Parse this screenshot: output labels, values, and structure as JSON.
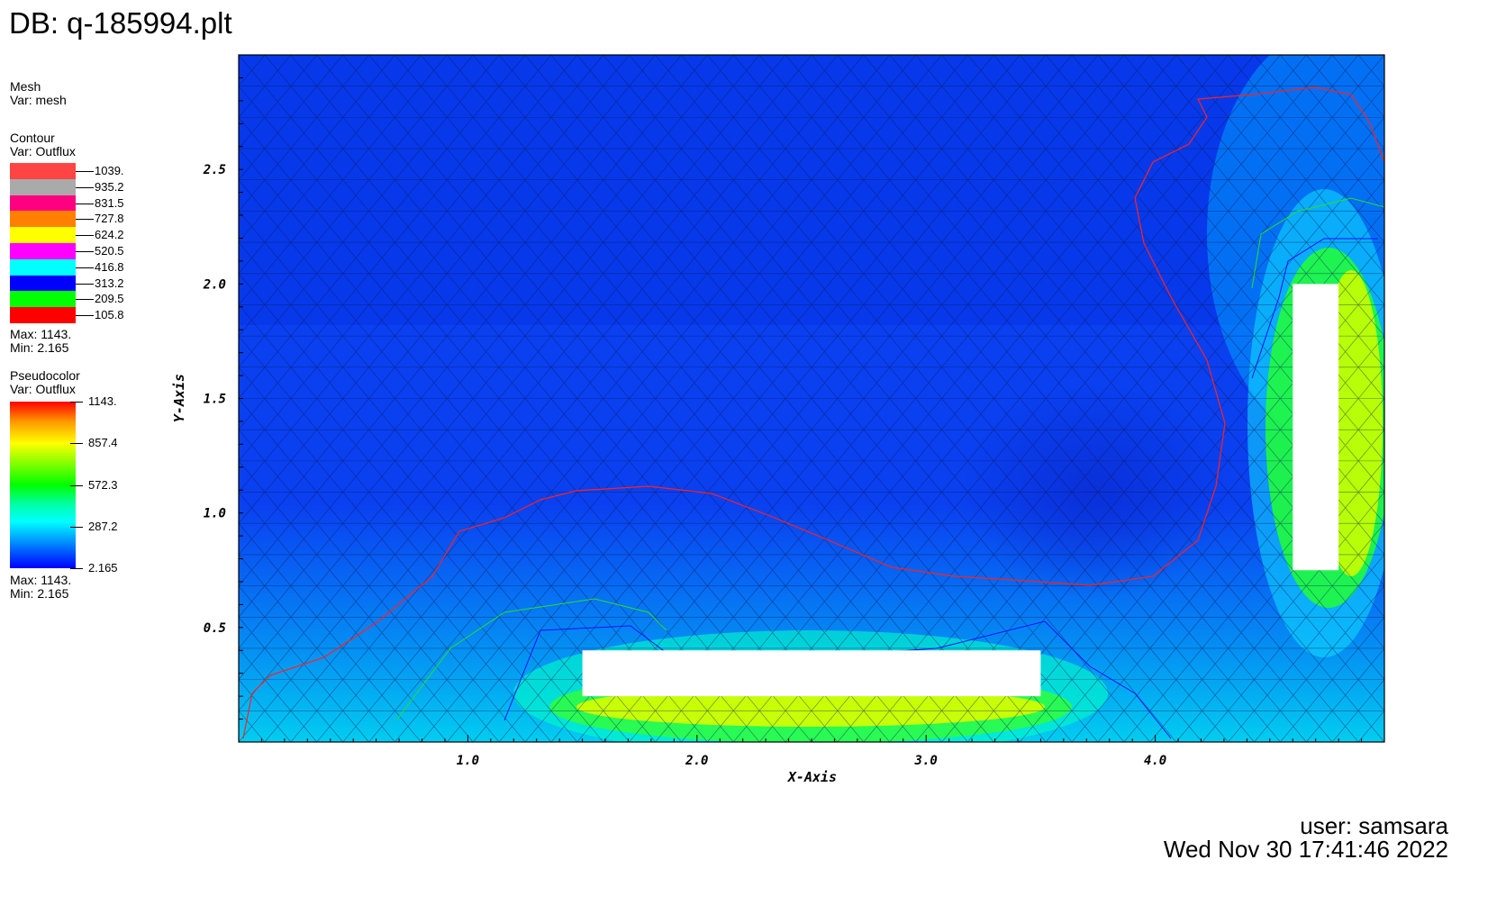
{
  "db_title": "DB: q-185994.plt",
  "legends": {
    "mesh": {
      "title": "Mesh",
      "var": "Var: mesh"
    },
    "contour": {
      "title": "Contour",
      "var": "Var: Outflux",
      "levels": [
        {
          "value": "1039.",
          "color": "#ff4444"
        },
        {
          "value": "935.2",
          "color": "#aaaaaa"
        },
        {
          "value": "831.5",
          "color": "#ff0080"
        },
        {
          "value": "727.8",
          "color": "#ff8000"
        },
        {
          "value": "624.2",
          "color": "#ffff00"
        },
        {
          "value": "520.5",
          "color": "#ff00ff"
        },
        {
          "value": "416.8",
          "color": "#00ffff"
        },
        {
          "value": "313.2",
          "color": "#0000ff"
        },
        {
          "value": "209.5",
          "color": "#00ff00"
        },
        {
          "value": "105.8",
          "color": "#ff0000"
        }
      ],
      "max": "Max: 1143.",
      "min": "Min: 2.165"
    },
    "pseudocolor": {
      "title": "Pseudocolor",
      "var": "Var: Outflux",
      "ticks": [
        "1143.",
        "857.4",
        "572.3",
        "287.2",
        "2.165"
      ],
      "max": "Max: 1143.",
      "min": "Min: 2.165"
    }
  },
  "footer": {
    "user": "user: samsara",
    "date": "Wed Nov 30 17:41:46 2022"
  },
  "chart_data": {
    "type": "heatmap",
    "xlabel": "X-Axis",
    "ylabel": "Y-Axis",
    "xlim": [
      0.0,
      5.0
    ],
    "ylim": [
      0.0,
      3.0
    ],
    "x_ticks": [
      "1.0",
      "2.0",
      "3.0",
      "4.0"
    ],
    "y_ticks": [
      "0.5",
      "1.0",
      "1.5",
      "2.0",
      "2.5"
    ],
    "x_tick_values": [
      1.0,
      2.0,
      3.0,
      4.0
    ],
    "y_tick_values": [
      0.5,
      1.0,
      1.5,
      2.0,
      2.5
    ],
    "colormap": "hot_desaturated",
    "value_range": [
      2.165,
      1143
    ],
    "obstacles": [
      {
        "name": "horizontal-plate",
        "x": [
          1.5,
          3.5
        ],
        "y": [
          0.2,
          0.4
        ]
      },
      {
        "name": "vertical-plate",
        "x": [
          4.6,
          4.8
        ],
        "y": [
          0.75,
          2.0
        ]
      }
    ],
    "mesh": true,
    "grid": false
  }
}
